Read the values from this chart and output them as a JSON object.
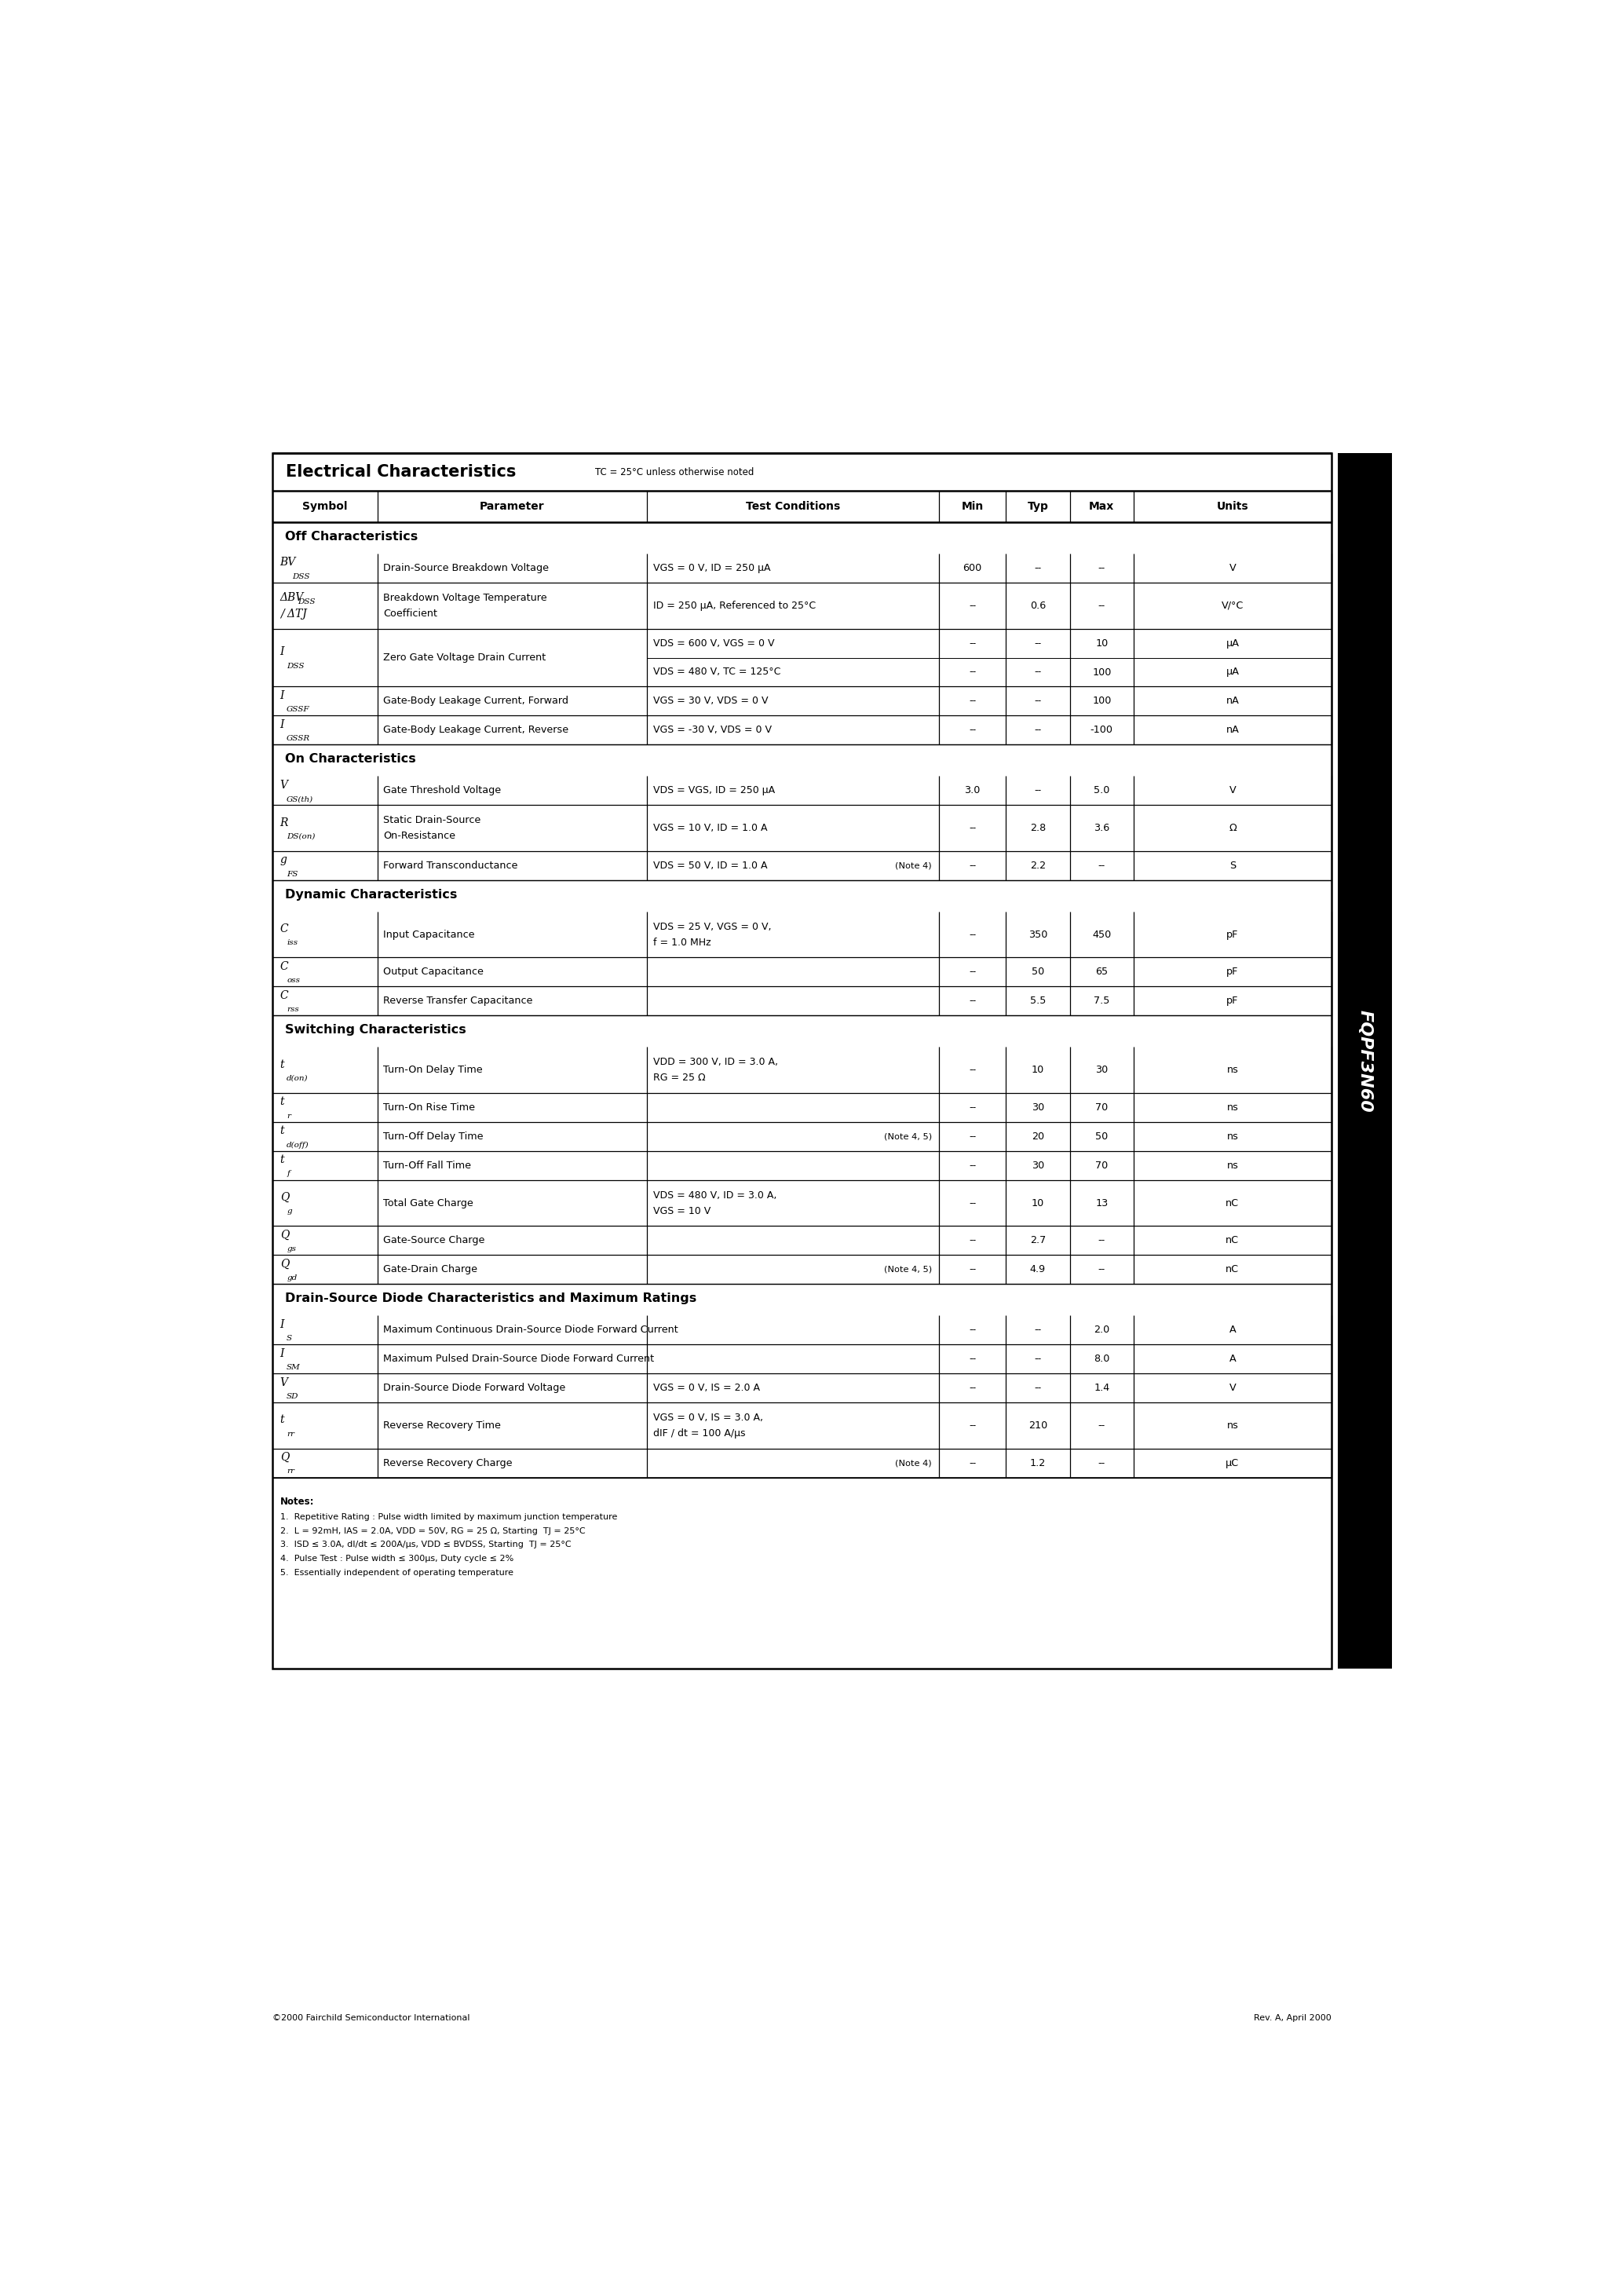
{
  "title": "Electrical Characteristics",
  "title_note": "TC = 25°C unless otherwise noted",
  "part_number": "FQPF3N60",
  "header_cols": [
    "Symbol",
    "Parameter",
    "Test Conditions",
    "Min",
    "Typ",
    "Max",
    "Units"
  ],
  "footer_left": "©2000 Fairchild Semiconductor International",
  "footer_right": "Rev. A, April 2000",
  "notes_header": "Notes:",
  "notes": [
    "1.  Repetitive Rating : Pulse width limited by maximum junction temperature",
    "2.  L = 92mH, IAS = 2.0A, VDD = 50V, RG = 25 Ω, Starting  TJ = 25°C",
    "3.  ISD ≤ 3.0A, dI/dt ≤ 200A/μs, VDD ≤ BVDSS, Starting  TJ = 25°C",
    "4.  Pulse Test : Pulse width ≤ 300μs, Duty cycle ≤ 2%",
    "5.  Essentially independent of operating temperature"
  ]
}
